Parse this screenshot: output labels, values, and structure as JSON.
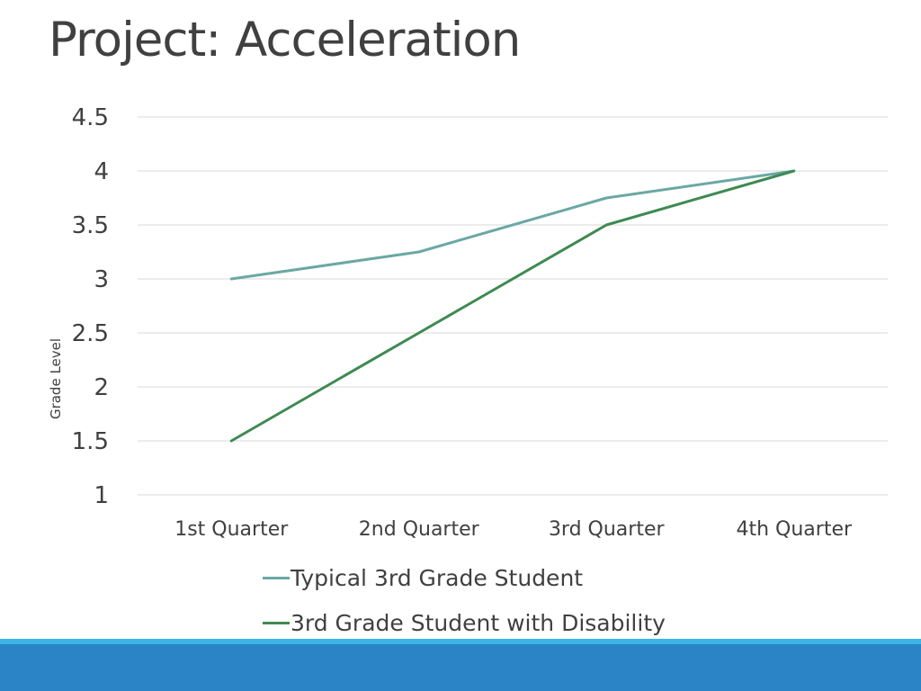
{
  "slide": {
    "title": "Project: Acceleration"
  },
  "colors": {
    "series_typical": "#6aa8a4",
    "series_disability": "#3e8a52",
    "gridline": "#d9d9d9",
    "text": "#404040",
    "footer_thin": "#3cb4e6",
    "footer_band": "#2a84c6"
  },
  "chart_data": {
    "type": "line",
    "title": "",
    "xlabel": "",
    "ylabel": "Grade Level",
    "categories": [
      "1st Quarter",
      "2nd Quarter",
      "3rd Quarter",
      "4th Quarter"
    ],
    "ylim": [
      1,
      4.5
    ],
    "yticks": [
      "1",
      "1.5",
      "2",
      "2.5",
      "3",
      "3.5",
      "4",
      "4.5"
    ],
    "grid": true,
    "legend_position": "bottom",
    "series": [
      {
        "name": "Typical 3rd Grade Student",
        "values": [
          3,
          3.25,
          3.75,
          4
        ],
        "color": "#6aa8a4"
      },
      {
        "name": "3rd Grade Student with Disability",
        "values": [
          1.5,
          2.5,
          3.5,
          4
        ],
        "color": "#3e8a52"
      }
    ]
  }
}
